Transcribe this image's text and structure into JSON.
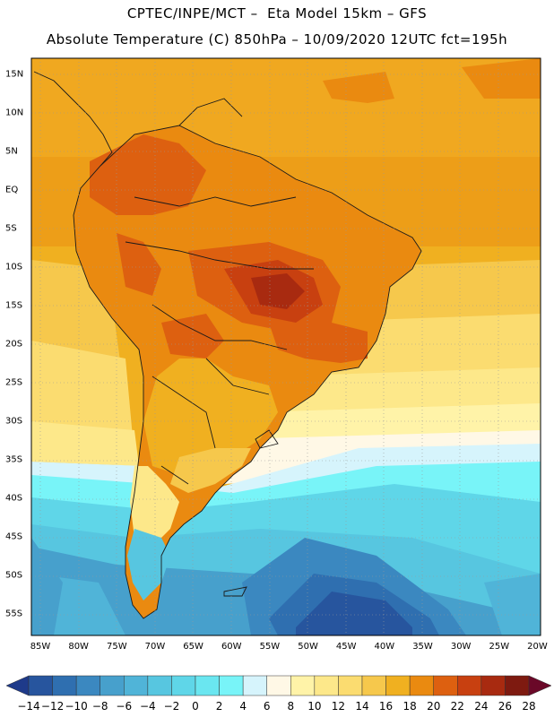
{
  "header": {
    "line1": "CPTEC/INPE/MCT –  Eta Model 15km – GFS",
    "line2": "Absolute Temperature (C) 850hPa – 10/09/2020 12UTC fct=195h"
  },
  "axes": {
    "lat_labels": [
      "15N",
      "10N",
      "5N",
      "EQ",
      "5S",
      "10S",
      "15S",
      "20S",
      "25S",
      "30S",
      "35S",
      "40S",
      "45S",
      "50S",
      "55S"
    ],
    "lat_values": [
      15,
      10,
      5,
      0,
      -5,
      -10,
      -15,
      -20,
      -25,
      -30,
      -35,
      -40,
      -45,
      -50,
      -55
    ],
    "lon_labels": [
      "85W",
      "80W",
      "75W",
      "70W",
      "65W",
      "60W",
      "55W",
      "50W",
      "45W",
      "40W",
      "35W",
      "30W",
      "25W",
      "20W"
    ],
    "lon_values": [
      -85,
      -80,
      -75,
      -70,
      -65,
      -60,
      -55,
      -50,
      -45,
      -40,
      -35,
      -30,
      -25,
      -20
    ]
  },
  "colorbar": {
    "labels": [
      "−14",
      "−12",
      "−10",
      "−8",
      "−6",
      "−4",
      "−2",
      "0",
      "2",
      "4",
      "6",
      "8",
      "10",
      "12",
      "14",
      "16",
      "18",
      "20",
      "22",
      "24",
      "26",
      "28"
    ],
    "colors": [
      "#1e3a8a",
      "#27559e",
      "#2f6fb0",
      "#3b88c0",
      "#47a0cc",
      "#50b4d8",
      "#57c6e0",
      "#5fd6e8",
      "#6ae6f0",
      "#78f4f8",
      "#d6f4fc",
      "#fff8e6",
      "#fff3a8",
      "#fde88a",
      "#fbdc70",
      "#f6c84c",
      "#f0b020",
      "#ea8a10",
      "#dd6010",
      "#c84010",
      "#a82a10",
      "#7e1a10",
      "#6a0828"
    ]
  }
}
